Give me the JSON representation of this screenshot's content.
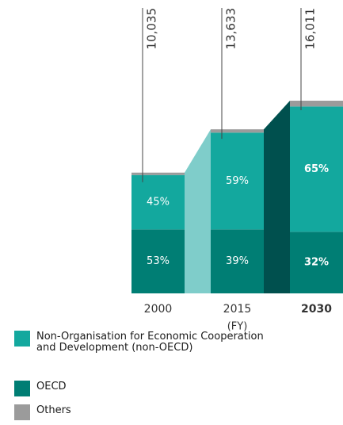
{
  "chart_data": {
    "type": "bar",
    "categories": [
      "2000",
      "2015",
      "2030"
    ],
    "category_note": "(FY)",
    "totals": [
      10035,
      13633,
      16011
    ],
    "total_labels": [
      "10,035",
      "13,633",
      "16,011"
    ],
    "series": [
      {
        "name": "Non-Organisation for Economic Cooperation and Development (non-OECD)",
        "color": "#13a89e",
        "values": [
          45,
          59,
          65
        ],
        "value_labels": [
          "45%",
          "59%",
          "65%"
        ]
      },
      {
        "name": "OECD",
        "color": "#007e74",
        "values": [
          53,
          39,
          32
        ],
        "value_labels": [
          "53%",
          "39%",
          "32%"
        ]
      },
      {
        "name": "Others",
        "color": "#9b9b9b",
        "values": [
          2,
          2,
          3
        ]
      }
    ],
    "ylim": [
      0,
      17000
    ]
  }
}
